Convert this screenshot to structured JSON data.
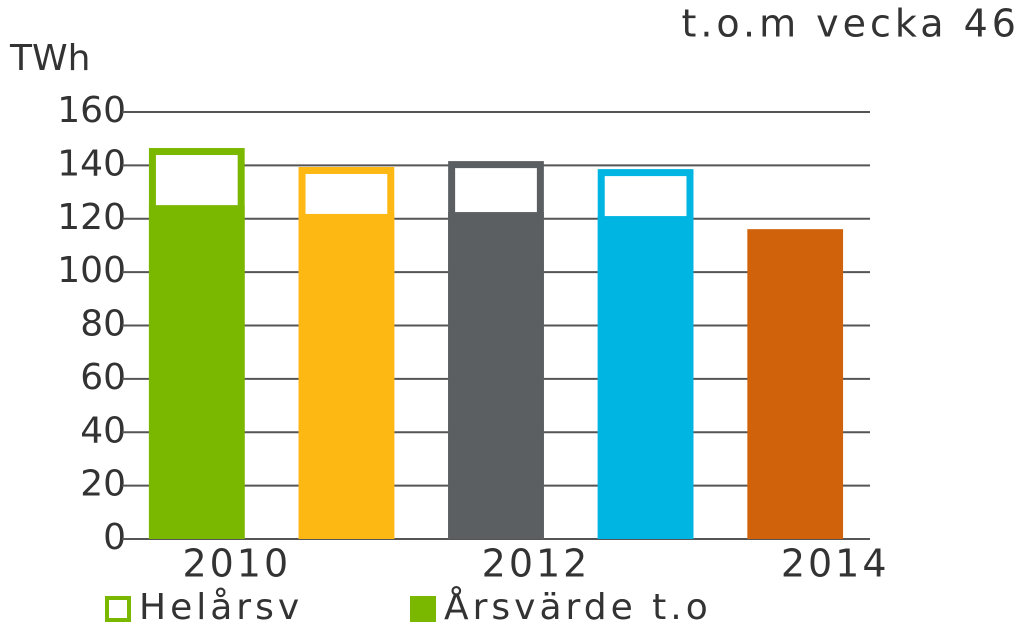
{
  "chart_data": {
    "type": "bar",
    "title": "t.o.m vecka 46",
    "y_label": "TWh",
    "categories": [
      "2010",
      null,
      "2012",
      null,
      "2014"
    ],
    "colors": [
      "#7ab800",
      "#fdb813",
      "#5b5f62",
      "#00b5e2",
      "#d0620c"
    ],
    "series": [
      {
        "name": "Helårsv",
        "color": "#7ab800",
        "style": "outline",
        "values": [
          146.5,
          139.4,
          141.6,
          138.6,
          null
        ]
      },
      {
        "name": "Årsvärde t.o",
        "color": "#7ab800",
        "style": "filled",
        "values": [
          125.1,
          121.8,
          122.5,
          121.0,
          116.1
        ]
      }
    ],
    "ylim": [
      0,
      160
    ],
    "yticks": [
      0,
      20,
      40,
      60,
      80,
      100,
      120,
      140,
      160
    ],
    "grid": true
  }
}
